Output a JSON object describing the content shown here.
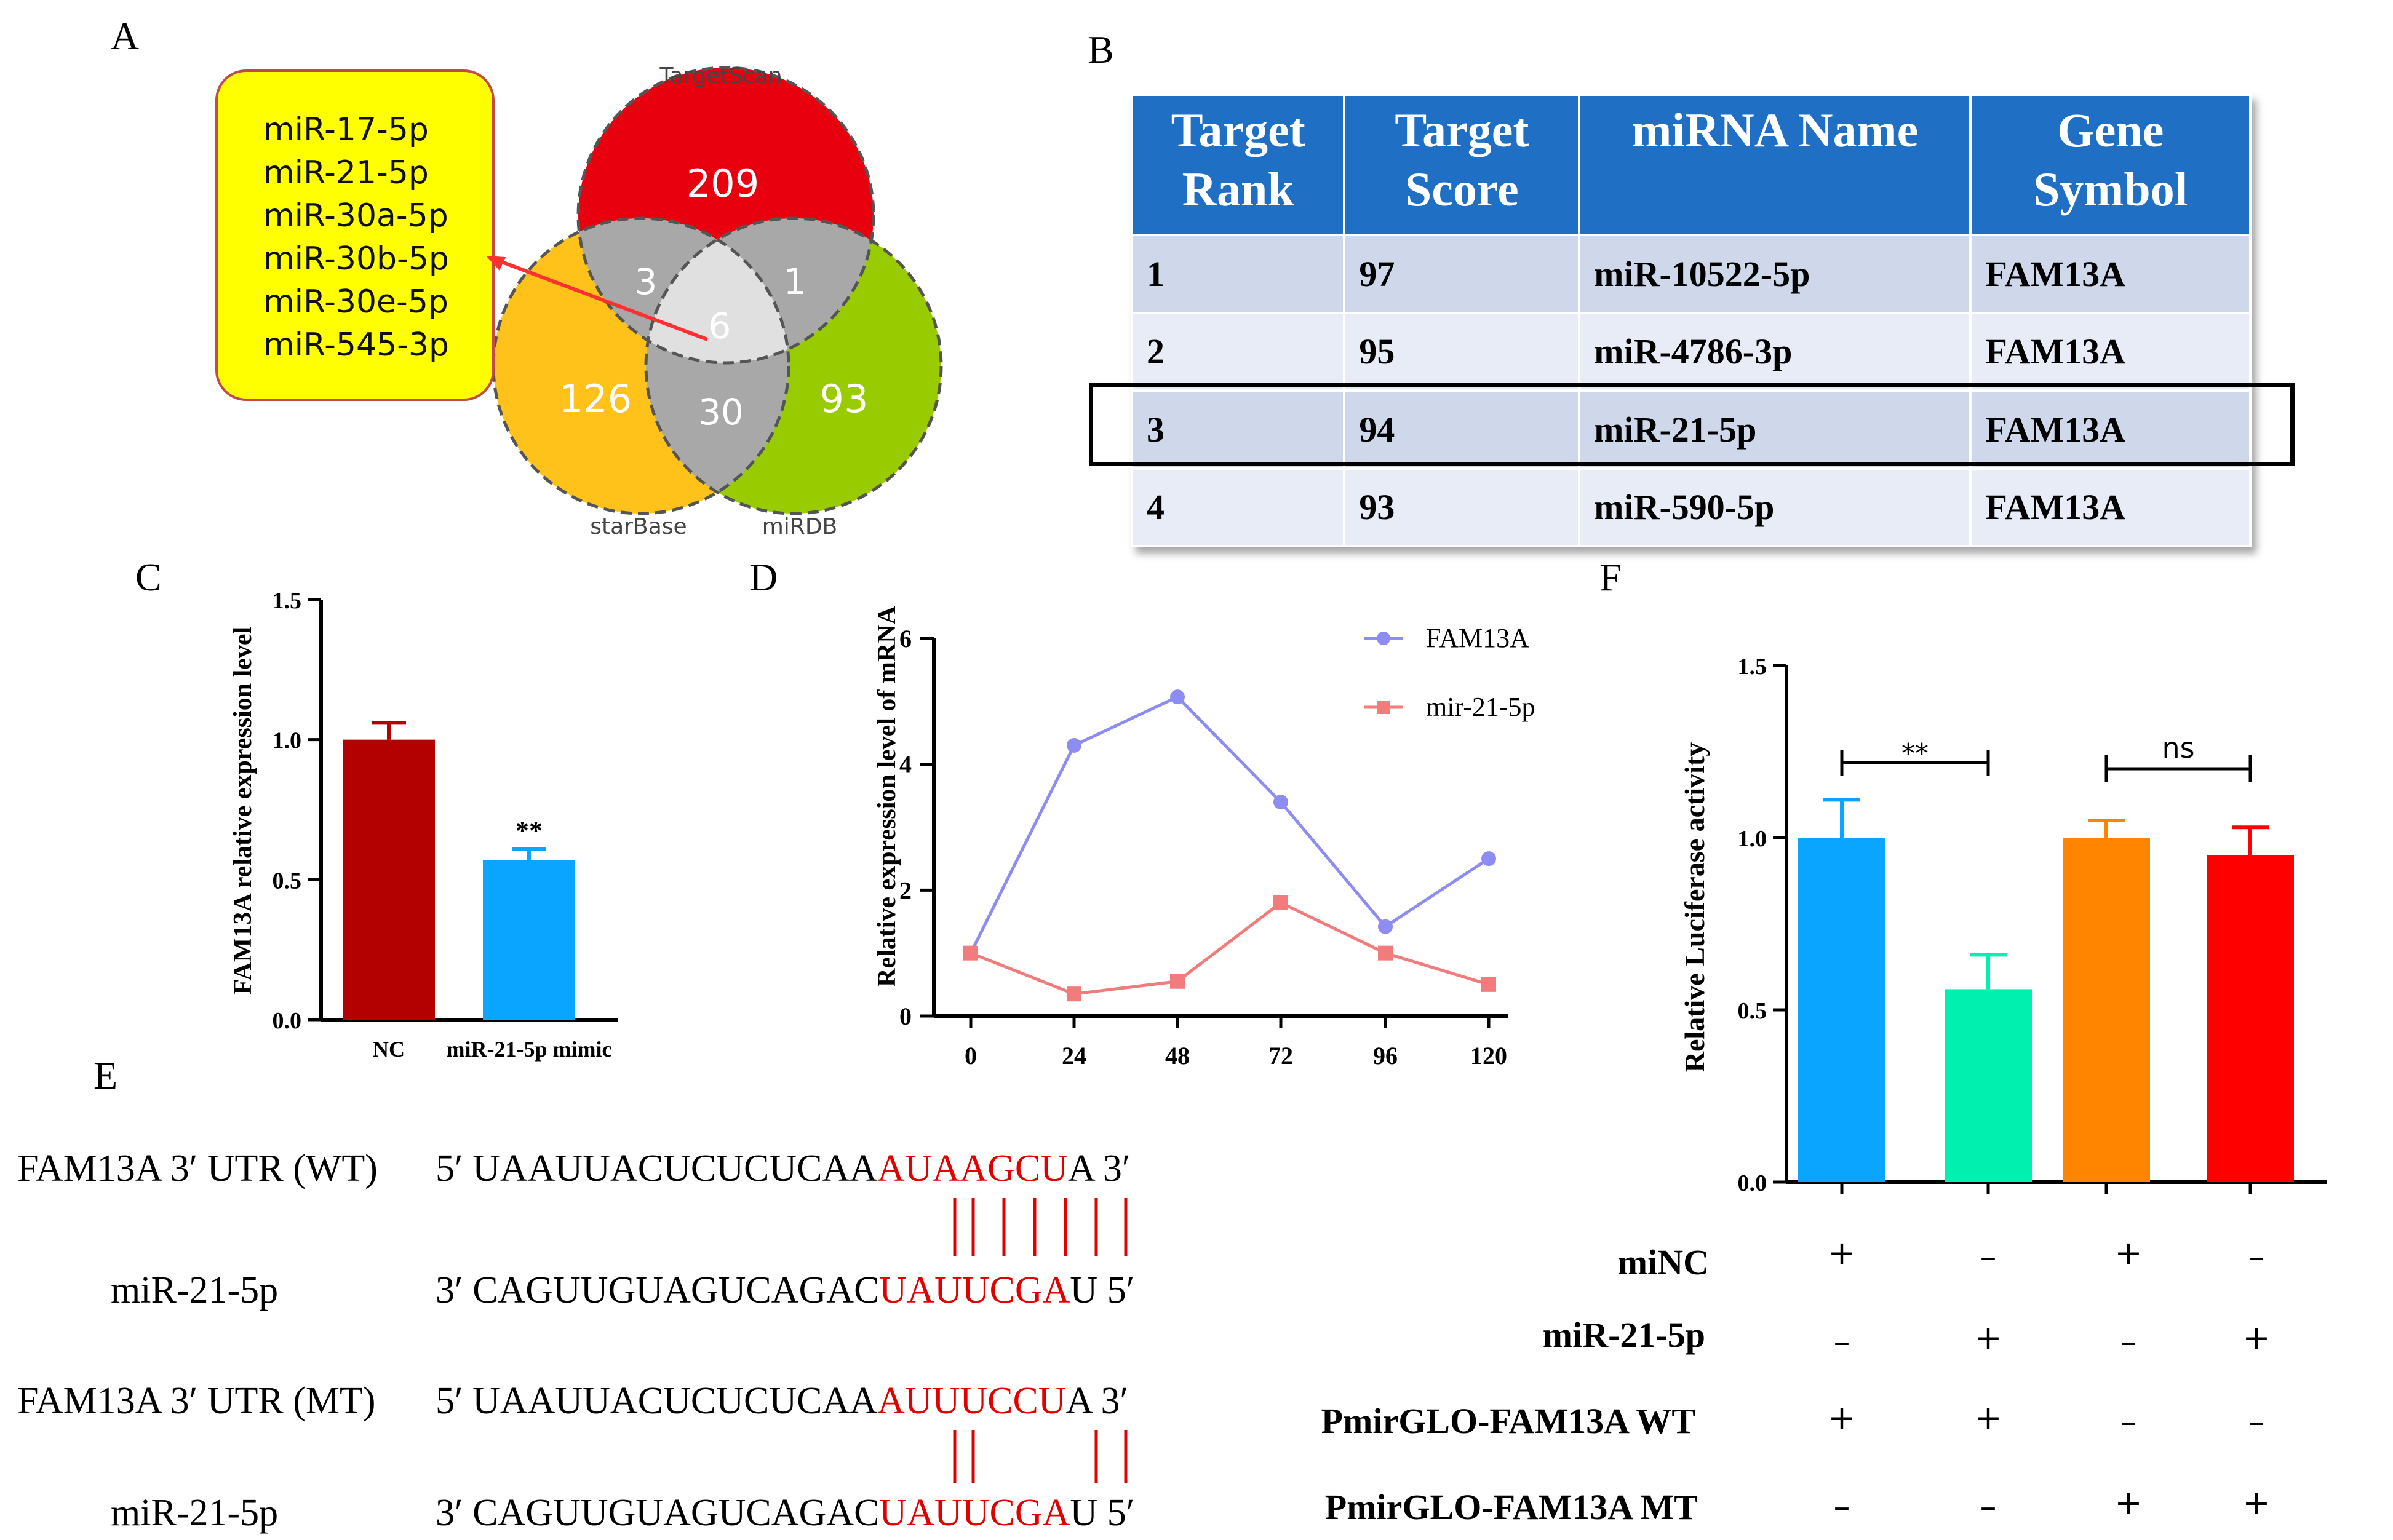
{
  "panels": {
    "a": "A",
    "b": "B",
    "c": "C",
    "d": "D",
    "e": "E",
    "f": "F"
  },
  "venn": {
    "sets": [
      "TargetScan",
      "starBase",
      "miRDB"
    ],
    "regions": {
      "targetscan_only": "209",
      "starbase_only": "126",
      "mirdb_only": "93",
      "ts_sb": "3",
      "ts_mirdb": "1",
      "sb_mirdb": "30",
      "all": "6"
    },
    "callout": [
      "miR-17-5p",
      "miR-21-5p",
      "miR-30a-5p",
      "miR-30b-5p",
      "miR-30e-5p",
      "miR-545-3p"
    ],
    "colors": {
      "targetscan": "#e8000f",
      "starbase": "#ffc21a",
      "mirdb": "#99cc00",
      "overlap": "#a8a8a8",
      "center": "#e0e0e0",
      "callout": "#ffff00",
      "arrow": "#ff3030"
    }
  },
  "table": {
    "headers": [
      [
        "Target",
        "Rank"
      ],
      [
        "Target",
        "Score"
      ],
      [
        "miRNA Name"
      ],
      [
        "Gene",
        "Symbol"
      ]
    ],
    "rows": [
      [
        "1",
        "97",
        "miR-10522-5p",
        "FAM13A"
      ],
      [
        "2",
        "95",
        "miR-4786-3p",
        "FAM13A"
      ],
      [
        "3",
        "94",
        "miR-21-5p",
        "FAM13A"
      ],
      [
        "4",
        "93",
        "miR-590-5p",
        "FAM13A"
      ]
    ],
    "header_color": "#1f6fc4"
  },
  "chart_data": [
    {
      "panel": "C",
      "type": "bar",
      "ylabel": "FAM13A relative expression level",
      "categories": [
        "NC",
        "miR-21-5p mimic"
      ],
      "values": [
        1.0,
        0.57
      ],
      "errors": [
        0.06,
        0.04
      ],
      "ylim": [
        0,
        1.5
      ],
      "yticks": [
        "0.0",
        "0.5",
        "1.0",
        "1.5"
      ],
      "significance": "**",
      "colors": [
        "#b30000",
        "#0aa5ff"
      ]
    },
    {
      "panel": "D",
      "type": "line",
      "ylabel": "Relative expression level of mRNA",
      "x": [
        0,
        24,
        48,
        72,
        96,
        120
      ],
      "xticks": [
        "0",
        "24",
        "48",
        "72",
        "96",
        "120"
      ],
      "ylim": [
        0,
        6
      ],
      "yticks": [
        "0",
        "2",
        "4",
        "6"
      ],
      "series": [
        {
          "name": "FAM13A",
          "values": [
            1.0,
            4.3,
            5.07,
            3.4,
            1.42,
            2.5
          ],
          "color": "#8c8cf2",
          "marker": "circle"
        },
        {
          "name": "mir-21-5p",
          "values": [
            1.0,
            0.35,
            0.55,
            1.8,
            1.0,
            0.5
          ],
          "color": "#f27b7b",
          "marker": "square"
        }
      ]
    },
    {
      "panel": "F",
      "type": "bar",
      "ylabel": "Relative Luciferase activity",
      "groups": 4,
      "values": [
        1.0,
        0.56,
        1.0,
        0.95
      ],
      "errors": [
        0.11,
        0.1,
        0.05,
        0.08
      ],
      "ylim": [
        0,
        1.5
      ],
      "yticks": [
        "0.0",
        "0.5",
        "1.0",
        "1.5"
      ],
      "colors": [
        "#0aa5ff",
        "#00f0b0",
        "#ff8400",
        "#ff0000"
      ],
      "comparisons": [
        {
          "label": "**",
          "bars": [
            1,
            2
          ]
        },
        {
          "label": "ns",
          "bars": [
            3,
            4
          ]
        }
      ],
      "conditions": [
        {
          "label": "miNC",
          "signs": [
            "+",
            "–",
            "+",
            "–"
          ]
        },
        {
          "label": "miR-21-5p",
          "signs": [
            "–",
            "+",
            "–",
            "+"
          ]
        },
        {
          "label": "PmirGLO-FAM13A WT",
          "signs": [
            "+",
            "+",
            "–",
            "–"
          ]
        },
        {
          "label": "PmirGLO-FAM13A MT",
          "signs": [
            "–",
            "–",
            "+",
            "+"
          ]
        }
      ]
    }
  ],
  "sequences": {
    "rows": [
      {
        "label": "FAM13A 3′ UTR (WT)",
        "prefix": "5′ UAAUUACUCUCUCAA",
        "seed": "AUAAGCU",
        "suffix": "A 3′"
      },
      {
        "label": "miR-21-5p",
        "prefix": "3′ CAGUUGUAGUCAGAC",
        "seed": "UAUUCGA",
        "suffix": "U 5′"
      },
      {
        "label": "FAM13A 3′ UTR (MT)",
        "prefix": "5′ UAAUUACUCUCUCAA",
        "seed": "AUUUCCU",
        "suffix": "A 3′"
      },
      {
        "label": "miR-21-5p",
        "prefix": "3′ CAGUUGUAGUCAGAC",
        "seed": "UAUUCGA",
        "suffix": "U 5′"
      }
    ],
    "seed_color": "#e00000"
  }
}
